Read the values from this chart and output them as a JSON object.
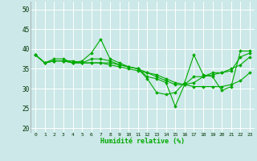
{
  "title": "",
  "xlabel": "Humidité relative (%)",
  "ylabel": "",
  "background_color": "#cce8e8",
  "grid_color": "#aacccc",
  "line_color": "#00aa00",
  "xlim": [
    -0.5,
    23.5
  ],
  "ylim": [
    19,
    52
  ],
  "yticks": [
    20,
    25,
    30,
    35,
    40,
    45,
    50
  ],
  "xticks": [
    0,
    1,
    2,
    3,
    4,
    5,
    6,
    7,
    8,
    9,
    10,
    11,
    12,
    13,
    14,
    15,
    16,
    17,
    18,
    19,
    20,
    21,
    22,
    23
  ],
  "series": [
    [
      38.5,
      36.5,
      37.5,
      37.5,
      36.5,
      37.0,
      39.0,
      42.5,
      37.5,
      36.5,
      35.5,
      35.0,
      32.5,
      29.0,
      28.5,
      29.0,
      31.5,
      38.5,
      33.5,
      33.0,
      29.5,
      30.5,
      39.5,
      39.5
    ],
    [
      38.5,
      36.5,
      37.0,
      37.0,
      36.5,
      36.5,
      37.5,
      37.5,
      37.0,
      36.0,
      35.5,
      35.0,
      33.0,
      32.5,
      31.5,
      25.5,
      31.0,
      33.0,
      33.0,
      34.0,
      34.0,
      34.5,
      38.0,
      39.0
    ],
    [
      38.5,
      36.5,
      37.0,
      37.0,
      37.0,
      36.5,
      36.5,
      36.5,
      36.5,
      36.0,
      35.5,
      35.0,
      34.0,
      33.0,
      32.0,
      31.0,
      31.0,
      31.5,
      33.0,
      33.5,
      34.0,
      35.0,
      36.0,
      38.0
    ],
    [
      38.5,
      36.5,
      37.0,
      37.0,
      36.5,
      36.5,
      36.5,
      36.5,
      36.0,
      35.5,
      35.0,
      34.5,
      34.0,
      33.5,
      32.5,
      31.5,
      31.0,
      30.5,
      30.5,
      30.5,
      30.5,
      31.0,
      32.0,
      34.0
    ]
  ]
}
